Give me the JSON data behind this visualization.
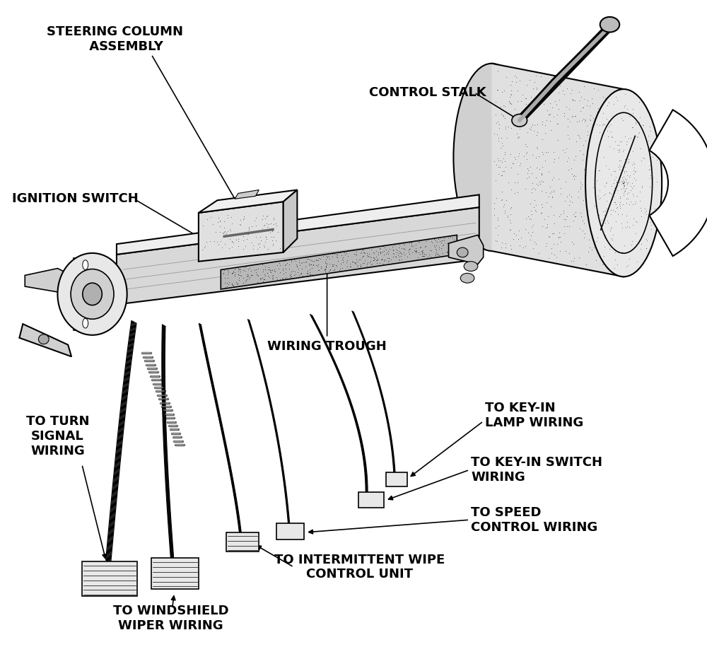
{
  "background_color": "#ffffff",
  "labels": {
    "steering_column": "STEERING COLUMN\n     ASSEMBLY",
    "control_stalk": "CONTROL STALK",
    "ignition_switch": "IGNITION SWITCH",
    "wiring_trough": "WIRING TROUGH",
    "to_turn_signal": "TO TURN\nSIGNAL\nWIRING",
    "to_windshield": "TO WINDSHIELD\nWIPER WIRING",
    "to_intermittent": "TO INTERMITTENT WIPE\nCONTROL UNIT",
    "to_speed": "TO SPEED\nCONTROL WIRING",
    "to_key_switch": "TO KEY-IN SWITCH\nWIRING",
    "to_key_lamp": "TO KEY-IN\nLAMP WIRING"
  },
  "fig_width": 10.0,
  "fig_height": 9.32,
  "dpi": 100
}
